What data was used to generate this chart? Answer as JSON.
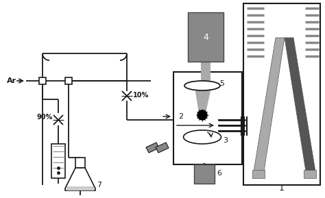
{
  "bg_color": "#ffffff",
  "lc": "#1a1a1a",
  "gl": "#aaaaaa",
  "gm": "#888888",
  "gd": "#555555",
  "gvl": "#cccccc",
  "gdark2": "#666666"
}
